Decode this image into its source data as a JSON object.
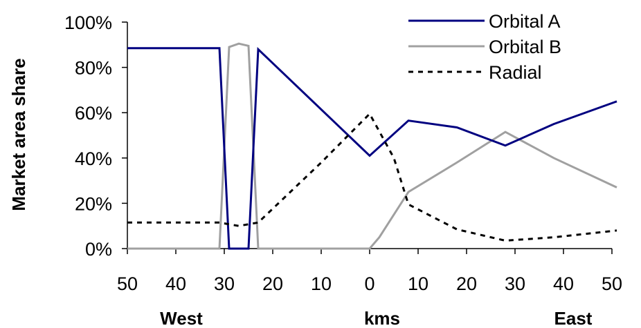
{
  "chart_data": {
    "type": "line",
    "ylabel": "Market area share",
    "xlabels": {
      "left": "West",
      "center": "kms",
      "right": "East"
    },
    "x_tick_labels": [
      "50",
      "40",
      "30",
      "20",
      "10",
      "0",
      "10",
      "20",
      "30",
      "40",
      "50"
    ],
    "x_tick_values": [
      -50,
      -40,
      -30,
      -20,
      -10,
      0,
      10,
      20,
      30,
      40,
      50
    ],
    "y_tick_labels": [
      "0%",
      "20%",
      "40%",
      "60%",
      "80%",
      "100%"
    ],
    "y_tick_values": [
      0,
      20,
      40,
      60,
      80,
      100
    ],
    "xlim": [
      -50,
      50
    ],
    "ylim": [
      0,
      100
    ],
    "grid": false,
    "legend_position": "top-right",
    "series": [
      {
        "name": "Orbital A",
        "color": "#000080",
        "dash": "solid",
        "x": [
          -50,
          -31,
          -29,
          -25,
          -23,
          0,
          8,
          18,
          28,
          38,
          51
        ],
        "y": [
          88.5,
          88.5,
          0,
          0,
          88,
          41,
          56.5,
          53.5,
          45.5,
          55,
          65
        ]
      },
      {
        "name": "Orbital B",
        "color": "#a0a0a0",
        "dash": "solid",
        "x": [
          -50,
          -31,
          -29,
          -27,
          -25,
          -23,
          0,
          2,
          8,
          18,
          28,
          38,
          51
        ],
        "y": [
          0,
          0,
          89,
          90.5,
          89.5,
          0,
          0,
          5,
          25,
          38,
          51.5,
          40,
          27
        ]
      },
      {
        "name": "Radial",
        "color": "#000000",
        "dash": "dashed",
        "x": [
          -50,
          -40,
          -31,
          -27,
          -23,
          -10,
          0,
          5,
          8,
          18,
          28,
          38,
          51
        ],
        "y": [
          11.5,
          11.5,
          11.5,
          10,
          11.5,
          38,
          59.5,
          40,
          19.5,
          8.5,
          3.5,
          5,
          8
        ]
      }
    ]
  }
}
